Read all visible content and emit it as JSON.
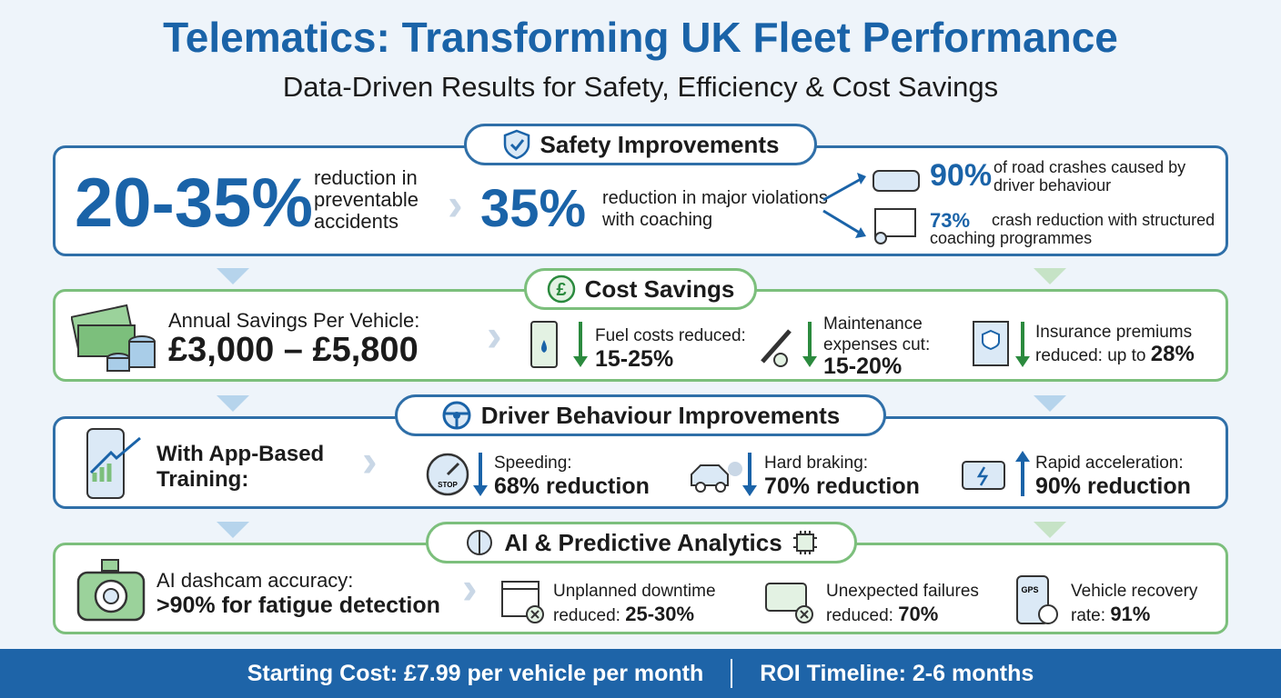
{
  "header": {
    "title": "Telematics: Transforming UK Fleet Performance",
    "subtitle": "Data-Driven Results for Safety, Efficiency & Cost Savings"
  },
  "sections": [
    {
      "title": "Safety Improvements",
      "items": [
        {
          "value": "20-35%",
          "text": "reduction in preventable accidents"
        },
        {
          "value": "35%",
          "text": "reduction in major violations with coaching"
        },
        {
          "value": "90%",
          "text": "of road crashes caused by driver behaviour"
        },
        {
          "value": "73%",
          "text": "crash reduction with structured coaching programmes"
        }
      ]
    },
    {
      "title": "Cost Savings",
      "items": [
        {
          "text": "Annual Savings Per Vehicle:",
          "value": "£3,000 – £5,800"
        },
        {
          "text": "Fuel costs reduced:",
          "value": "15-25%"
        },
        {
          "text": "Maintenance expenses cut:",
          "value": "15-20%"
        },
        {
          "text": "Insurance premiums reduced: up to",
          "value": "28%"
        }
      ]
    },
    {
      "title": "Driver Behaviour Improvements",
      "items": [
        {
          "text": "With App-Based Training:"
        },
        {
          "text": "Speeding:",
          "value": "68% reduction",
          "icon_label": "STOP"
        },
        {
          "text": "Hard braking:",
          "value": "70% reduction"
        },
        {
          "text": "Rapid acceleration:",
          "value": "90% reduction"
        }
      ]
    },
    {
      "title": "AI & Predictive Analytics",
      "items": [
        {
          "text": "AI dashcam accuracy:",
          "value": ">90% for fatigue detection"
        },
        {
          "text": "Unplanned downtime reduced:",
          "value": "25-30%"
        },
        {
          "text": "Unexpected failures reduced:",
          "value": "70%"
        },
        {
          "text": "Vehicle recovery rate:",
          "value": "91%",
          "icon_label": "GPS"
        }
      ]
    }
  ],
  "footer": {
    "cost": "Starting Cost: £7.99 per vehicle per month",
    "roi": "ROI Timeline: 2-6 months"
  }
}
